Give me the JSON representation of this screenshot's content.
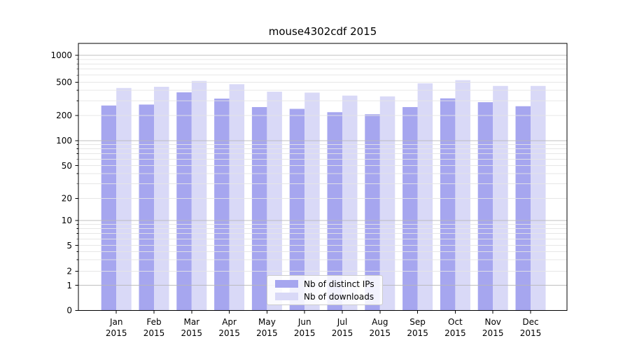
{
  "chart_data": {
    "type": "bar",
    "title": "mouse4302cdf 2015",
    "y_scale": "symlog",
    "months": [
      "Jan",
      "Feb",
      "Mar",
      "Apr",
      "May",
      "Jun",
      "Jul",
      "Aug",
      "Sep",
      "Oct",
      "Nov",
      "Dec"
    ],
    "year": "2015",
    "series": [
      {
        "name": "Nb of distinct IPs",
        "color": "#a6a6ef",
        "values": [
          263,
          270,
          378,
          318,
          252,
          240,
          219,
          207,
          252,
          320,
          288,
          258
        ]
      },
      {
        "name": "Nb of downloads",
        "color": "#d9d9f7",
        "values": [
          425,
          440,
          515,
          472,
          384,
          375,
          345,
          338,
          483,
          525,
          450,
          450
        ]
      }
    ],
    "y_ticks": [
      1000,
      500,
      200,
      100,
      50,
      20,
      10,
      5,
      2,
      1,
      0
    ],
    "ylim": [
      0,
      1360
    ],
    "grid": "both",
    "legend_position": "lower center",
    "colors": {
      "major_grid": "#b8b8b8",
      "minor_grid": "#e4e4e4",
      "axis": "#000000",
      "background": "#ffffff"
    }
  }
}
